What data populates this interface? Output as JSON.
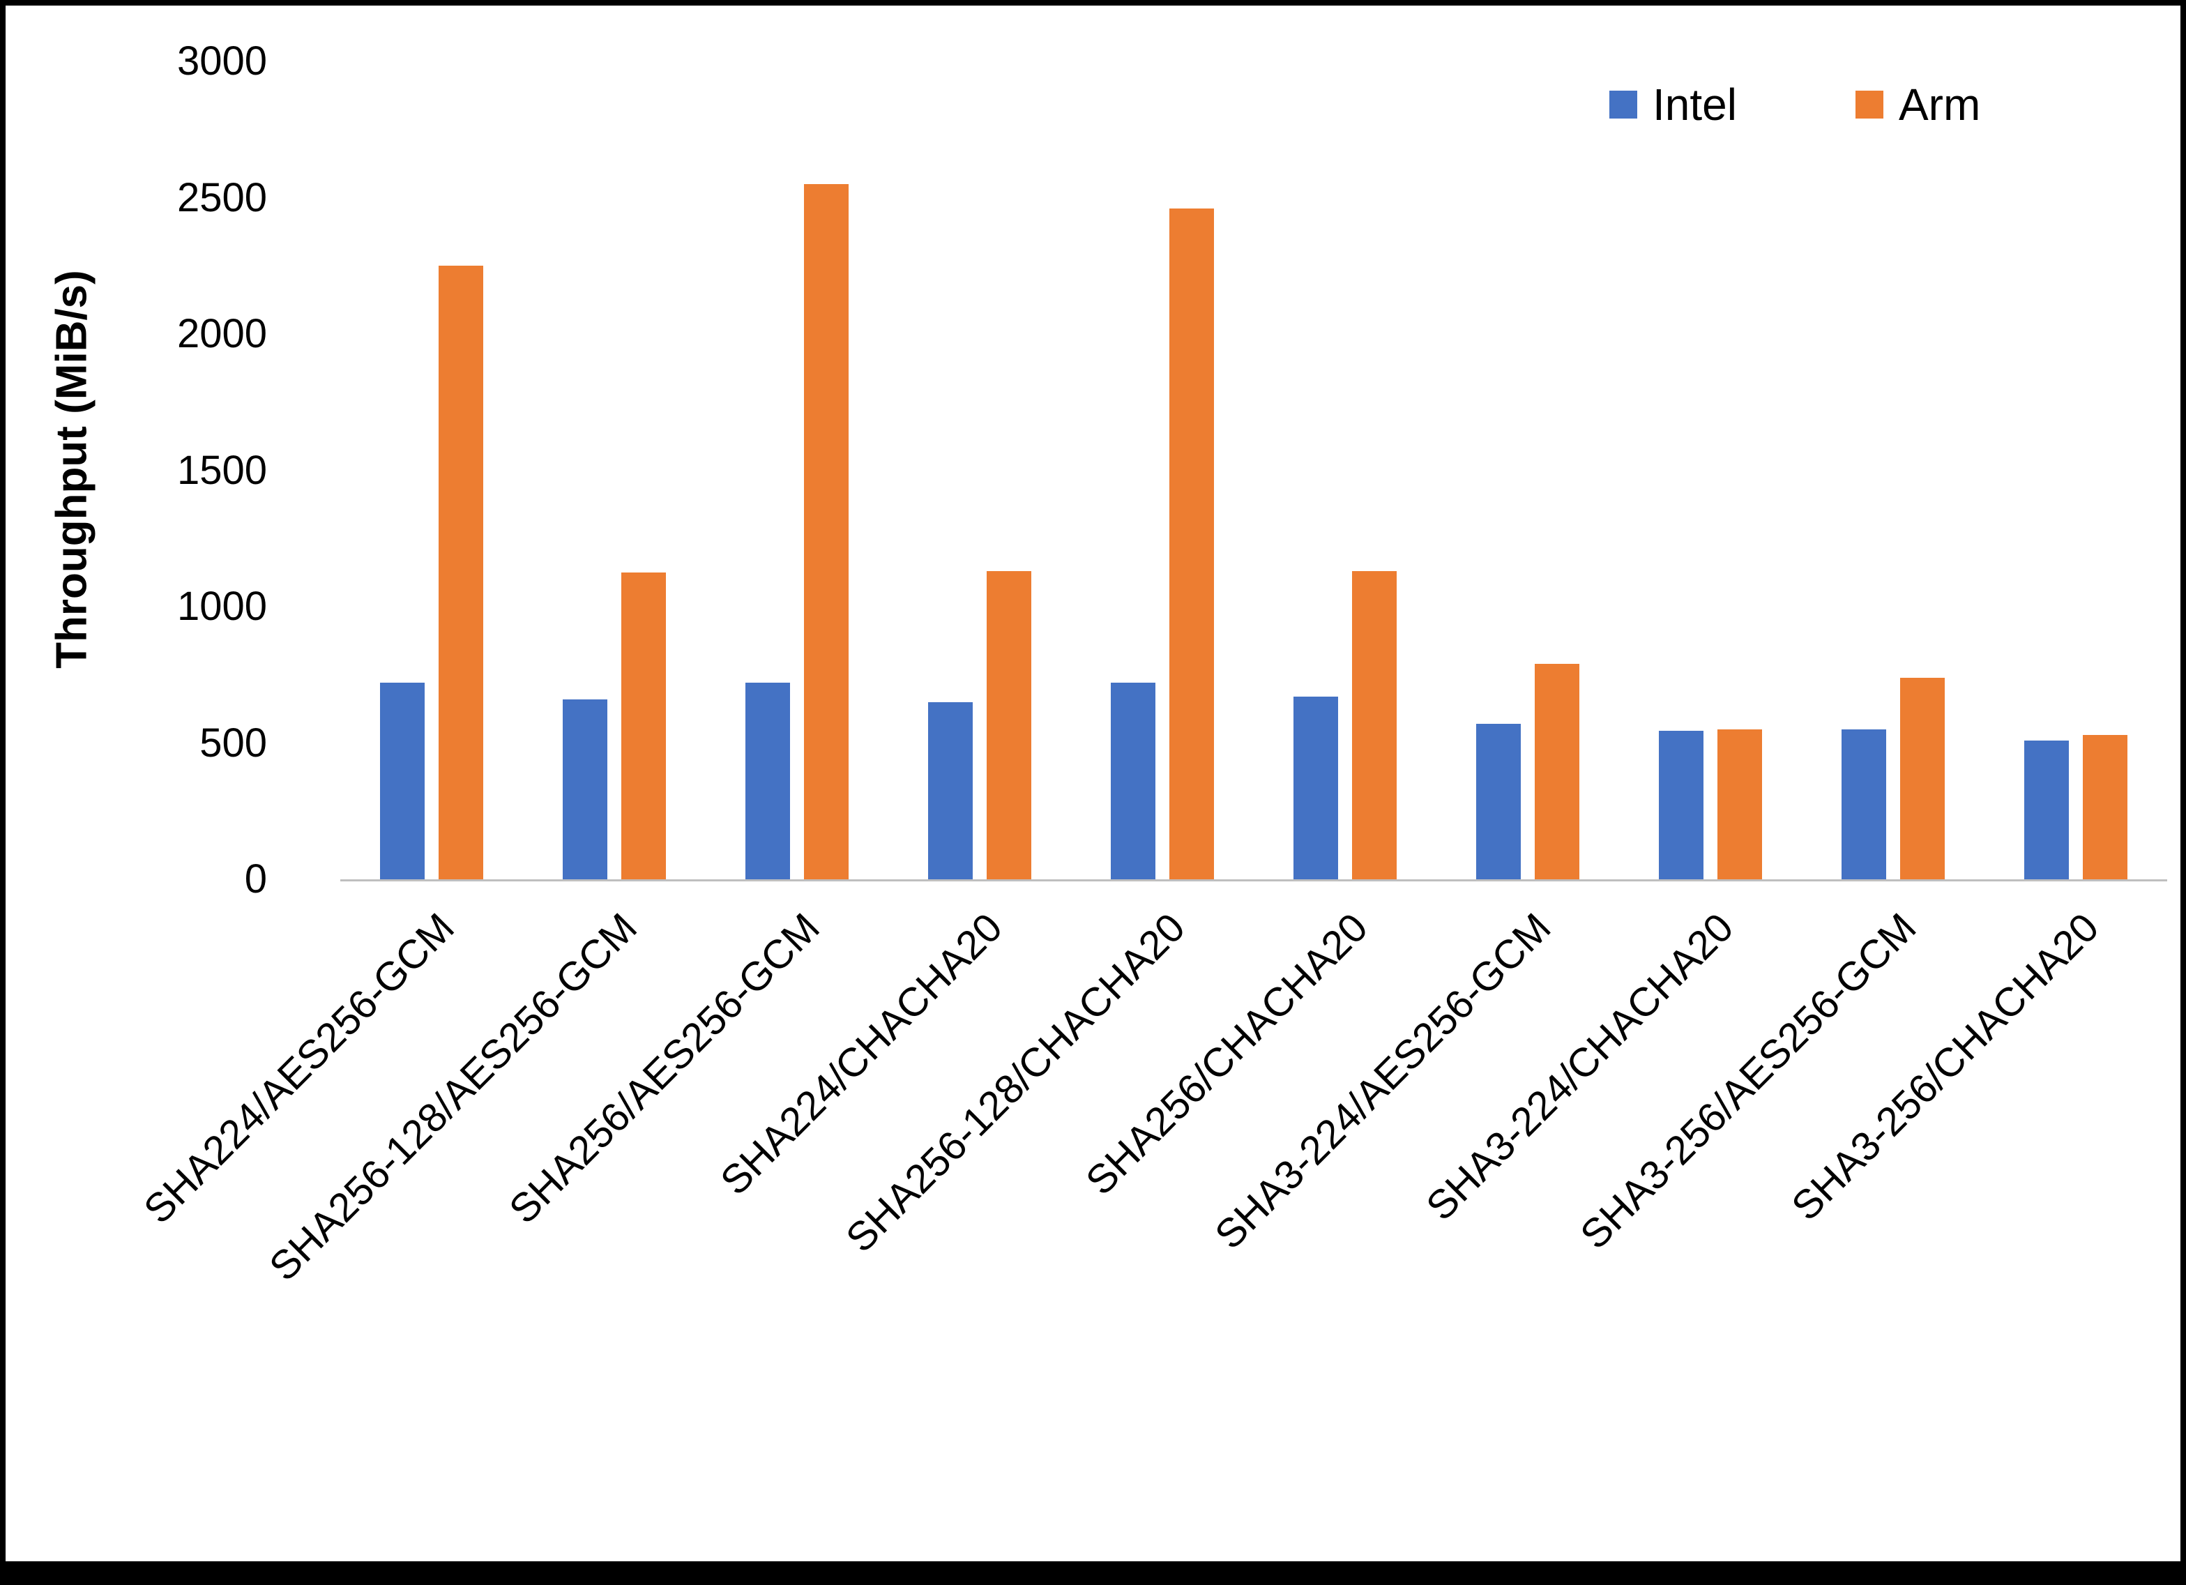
{
  "chart_data": {
    "type": "bar",
    "title": "",
    "xlabel": "",
    "ylabel": "Throughput (MiB/s)",
    "ylim": [
      0,
      3000
    ],
    "yticks": [
      0,
      500,
      1000,
      1500,
      2000,
      2500,
      3000
    ],
    "grid": false,
    "legend_position": "top-right",
    "categories": [
      "SHA224/AES256-GCM",
      "SHA256-128/AES256-GCM",
      "SHA256/AES256-GCM",
      "SHA224/CHACHA20",
      "SHA256-128/CHACHA20",
      "SHA256/CHACHA20",
      "SHA3-224/AES256-GCM",
      "SHA3-224/CHACHA20",
      "SHA3-256/AES256-GCM",
      "SHA3-256/CHACHA20"
    ],
    "series": [
      {
        "name": "Intel",
        "color": "#4472C4",
        "values": [
          720,
          660,
          720,
          650,
          720,
          670,
          570,
          545,
          550,
          510
        ]
      },
      {
        "name": "Arm",
        "color": "#ED7D31",
        "values": [
          2250,
          1125,
          2550,
          1130,
          2460,
          1130,
          790,
          550,
          740,
          530
        ]
      }
    ]
  },
  "colors": {
    "background": "#ffffff",
    "border": "#000000",
    "axis_line": "#bfbfbf",
    "text": "#000000",
    "intel": "#4472C4",
    "arm": "#ED7D31"
  }
}
